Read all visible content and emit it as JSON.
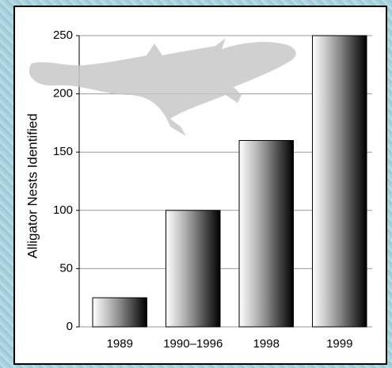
{
  "chart_data": {
    "type": "bar",
    "y_label": "Alligator Nests Identified",
    "categories": [
      "1989",
      "1990–1996",
      "1998",
      "1999"
    ],
    "values": [
      25,
      100,
      160,
      250
    ],
    "ylim": [
      0,
      250
    ],
    "yticks": [
      0,
      50,
      100,
      150,
      200,
      250
    ],
    "grid": true
  }
}
